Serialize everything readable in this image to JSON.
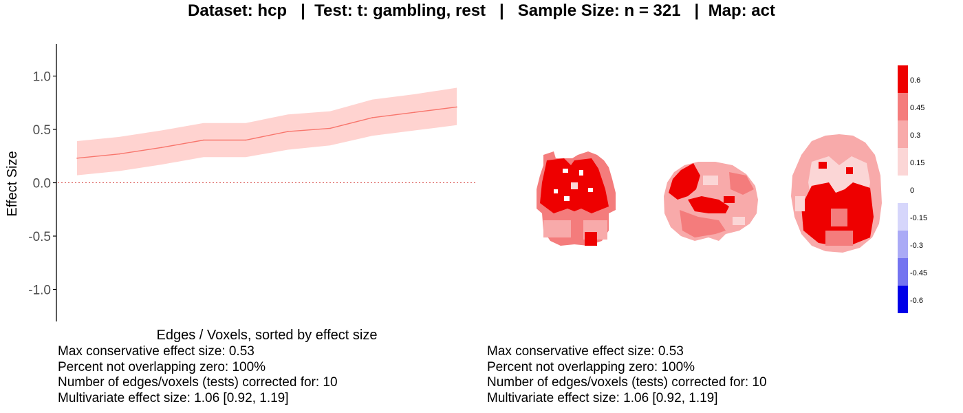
{
  "title": "Dataset: hcp   |  Test: t: gambling, rest   |   Sample Size: n = 321   |  Map: act",
  "chart_data": [
    {
      "type": "line",
      "xlabel": "Edges / Voxels, sorted by effect size",
      "ylabel": "Effect Size",
      "ylim": [
        -1.3,
        1.3
      ],
      "yticks": [
        -1.0,
        -0.5,
        0.0,
        0.5,
        1.0
      ],
      "ytick_labels": [
        "-1.0",
        "-0.5",
        "0.0",
        "0.5",
        "1.0"
      ],
      "x": [
        1,
        2,
        3,
        4,
        5,
        6,
        7,
        8,
        9,
        10
      ],
      "series": [
        {
          "name": "effect size",
          "values": [
            0.23,
            0.27,
            0.33,
            0.4,
            0.4,
            0.48,
            0.51,
            0.61,
            0.66,
            0.71
          ],
          "lower": [
            0.07,
            0.11,
            0.17,
            0.24,
            0.24,
            0.31,
            0.35,
            0.44,
            0.49,
            0.54
          ],
          "upper": [
            0.39,
            0.43,
            0.49,
            0.56,
            0.56,
            0.64,
            0.67,
            0.78,
            0.83,
            0.89
          ],
          "color": "#f8766d",
          "band_color": "#ffd3d0"
        }
      ],
      "reference_line": {
        "y": 0,
        "style": "dashed",
        "color": "#d9534f"
      },
      "grid": false
    },
    {
      "type": "heatmap",
      "name": "brain activation map colorbar",
      "colorbar_ticks": [
        "0.6",
        "0.45",
        "0.3",
        "0.15",
        "0",
        "-0.15",
        "-0.3",
        "-0.45",
        "-0.6"
      ],
      "colorbar_colors": [
        "#ee0000",
        "#f47c7c",
        "#f8aaaa",
        "#fbd6d6",
        "#ffffff",
        "#d6d6fb",
        "#aaaaf6",
        "#7474f0",
        "#0000e8"
      ],
      "views": [
        "coronal",
        "sagittal",
        "axial"
      ]
    }
  ],
  "stats_left": [
    "Max conservative effect size: 0.53",
    "Percent not overlapping zero: 100%",
    "Number of edges/voxels (tests) corrected for: 10",
    "Multivariate effect size: 1.06 [0.92, 1.19]"
  ],
  "stats_right": [
    "Max conservative effect size: 0.53",
    "Percent not overlapping zero: 100%",
    "Number of edges/voxels (tests) corrected for: 10",
    "Multivariate effect size: 1.06 [0.92, 1.19]"
  ]
}
